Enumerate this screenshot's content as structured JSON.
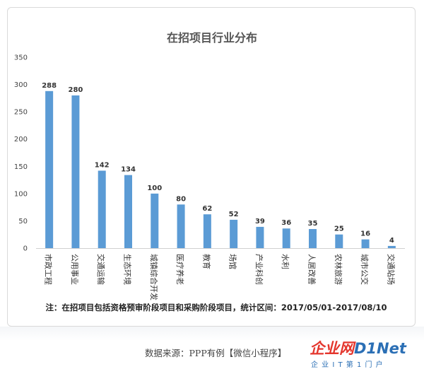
{
  "chart_data": {
    "type": "bar",
    "title": "在招项目行业分布",
    "categories": [
      "市政工程",
      "公用事业",
      "交通运输",
      "生态环境",
      "城镇综合开发",
      "医疗养老",
      "教育",
      "场馆",
      "产业科创",
      "水利",
      "人居改善",
      "农林旅游",
      "城市公交",
      "交通站场"
    ],
    "values": [
      288,
      280,
      142,
      134,
      100,
      80,
      62,
      52,
      39,
      36,
      35,
      25,
      16,
      4
    ],
    "ylim": [
      0,
      350
    ],
    "yticks": [
      0,
      50,
      100,
      150,
      200,
      250,
      300,
      350
    ],
    "grid": false,
    "legend": "none",
    "bar_color": "#5b9bd5",
    "note": "注：在招项目包括资格预审阶段项目和采购阶段项目，统计区间：2017/05/01-2017/08/10"
  },
  "footer": {
    "source": "数据来源：PPP有例【微信小程序】",
    "brand_cn": "企业网",
    "brand_en": "D1Net",
    "brand_sub": "企 业 I T 第 1 门 户"
  }
}
